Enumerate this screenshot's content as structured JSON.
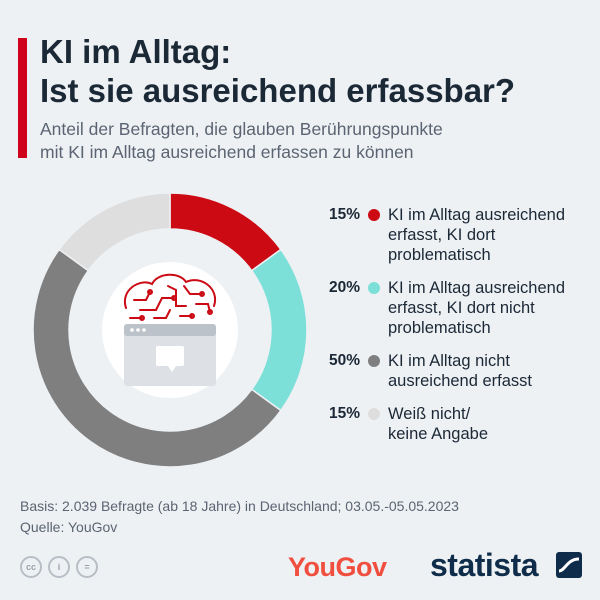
{
  "title_lines": [
    "KI im Alltag:",
    "Ist sie ausreichend erfassbar?"
  ],
  "subtitle_lines": [
    "Anteil der Befragten, die glauben Berührungspunkte",
    "mit KI im Alltag ausreichend erfassen zu können"
  ],
  "chart_data": {
    "type": "pie",
    "variant": "donut",
    "unit": "%",
    "slices": [
      {
        "pct_label": "15%",
        "label_lines": [
          "KI im Alltag ausreichend",
          "erfasst, KI dort",
          "problematisch"
        ],
        "value": 15,
        "color": "#cc0a14"
      },
      {
        "pct_label": "20%",
        "label_lines": [
          "KI im Alltag ausreichend",
          "erfasst, KI dort nicht",
          "problematisch"
        ],
        "value": 20,
        "color": "#7cdfd8"
      },
      {
        "pct_label": "50%",
        "label_lines": [
          "KI im Alltag nicht",
          "ausreichend erfasst"
        ],
        "value": 50,
        "color": "#7f7f7f"
      },
      {
        "pct_label": "15%",
        "label_lines": [
          "Weiß nicht/",
          "keine Angabe"
        ],
        "value": 15,
        "color": "#dedede"
      }
    ],
    "legend_placement": "right",
    "center_icon": "ai-brain-browser-icon"
  },
  "footer": {
    "basis": "Basis: 2.039 Befragte (ab 18 Jahre) in Deutschland; 03.05.-05.05.2023",
    "source": "Quelle: YouGov"
  },
  "license_icons": [
    {
      "name": "cc-icon",
      "glyph": "cc"
    },
    {
      "name": "by-icon",
      "glyph": "i"
    },
    {
      "name": "nd-icon",
      "glyph": "="
    }
  ],
  "logos": {
    "partner": "YouGov",
    "publisher": "statista"
  },
  "colors": {
    "accent": "#d0021b",
    "background": "#eef1f4"
  }
}
